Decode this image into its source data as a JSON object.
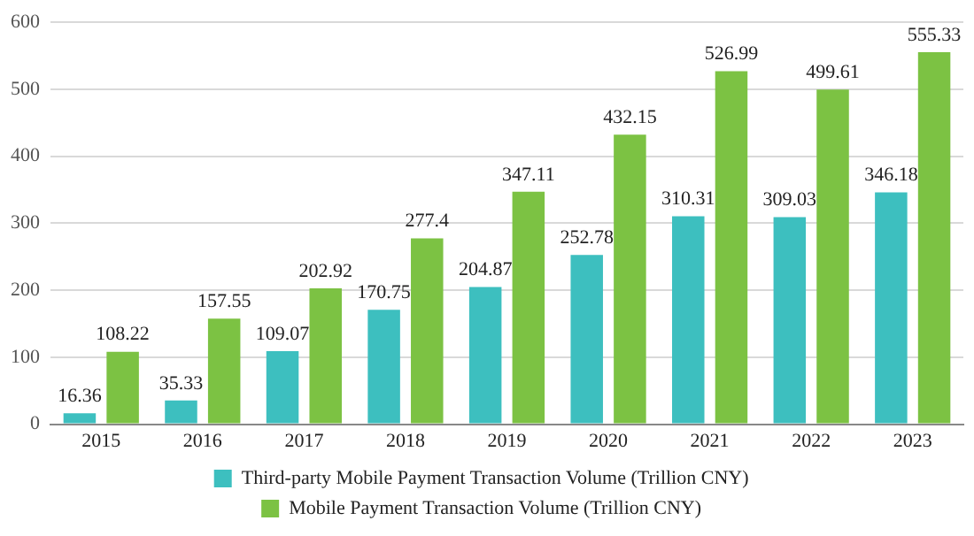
{
  "chart_data": {
    "type": "bar",
    "categories": [
      "2015",
      "2016",
      "2017",
      "2018",
      "2019",
      "2020",
      "2021",
      "2022",
      "2023"
    ],
    "series": [
      {
        "name": "Third-party Mobile Payment Transaction Volume (Trillion CNY)",
        "color": "#3dbfbf",
        "values": [
          16.36,
          35.33,
          109.07,
          170.75,
          204.87,
          252.78,
          310.31,
          309.03,
          346.18
        ]
      },
      {
        "name": "Mobile Payment Transaction Volume (Trillion CNY)",
        "color": "#7cc243",
        "values": [
          108.22,
          157.55,
          202.92,
          277.4,
          347.11,
          432.15,
          526.99,
          499.61,
          555.33
        ]
      }
    ],
    "ylim": [
      0,
      600
    ],
    "yticks": [
      0,
      100,
      200,
      300,
      400,
      500,
      600
    ],
    "grid": "y",
    "legend": "bottom",
    "data_labels": true
  }
}
